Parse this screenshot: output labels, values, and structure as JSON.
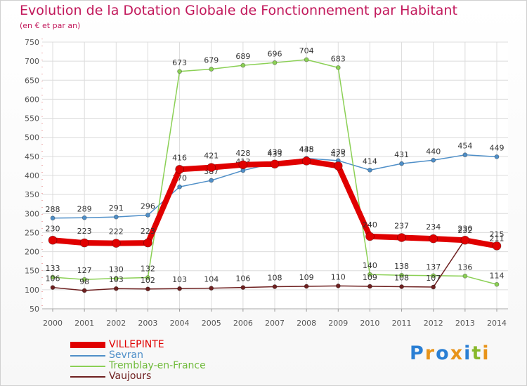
{
  "header": {
    "title": "Evolution de la Dotation Globale de Fonctionnement par Habitant",
    "subtitle": "(en € et par an)"
  },
  "brand": {
    "text": "Proxiti",
    "colors": [
      "#2a7fd4",
      "#e8941a",
      "#2a7fd4",
      "#e8941a",
      "#2a7fd4",
      "#88b82a",
      "#e8941a"
    ]
  },
  "chart_data": {
    "type": "line",
    "title": "Evolution de la Dotation Globale de Fonctionnement par Habitant",
    "subtitle": "(en € et par an)",
    "xlabel": "",
    "ylabel": "",
    "x": [
      2000,
      2001,
      2002,
      2003,
      2004,
      2005,
      2006,
      2007,
      2008,
      2009,
      2010,
      2011,
      2012,
      2013,
      2014
    ],
    "ylim": [
      50,
      750
    ],
    "yticks": [
      50,
      100,
      150,
      200,
      250,
      300,
      350,
      400,
      450,
      500,
      550,
      600,
      650,
      700,
      750
    ],
    "grid": true,
    "legend_position": "bottom-left",
    "series": [
      {
        "name": "Sevran",
        "color": "#4f8fc8",
        "values": [
          288,
          289,
          291,
          296,
          370,
          387,
          413,
          433,
          445,
          439,
          414,
          431,
          440,
          454,
          449
        ]
      },
      {
        "name": "Tremblay-en-France",
        "color": "#8bd055",
        "values": [
          133,
          127,
          130,
          132,
          673,
          679,
          689,
          696,
          704,
          683,
          140,
          138,
          137,
          136,
          114
        ]
      },
      {
        "name": "Vaujours",
        "color": "#6e2020",
        "values": [
          106,
          98,
          103,
          102,
          103,
          104,
          106,
          108,
          109,
          110,
          109,
          108,
          107,
          232,
          211
        ]
      },
      {
        "name": "VILLEPINTE",
        "color": "#e00000",
        "values": [
          230,
          223,
          222,
          223,
          416,
          421,
          428,
          430,
          438,
          425,
          240,
          237,
          234,
          230,
          215
        ]
      }
    ],
    "legend": [
      "VILLEPINTE",
      "Sevran",
      "Tremblay-en-France",
      "Vaujours"
    ]
  }
}
